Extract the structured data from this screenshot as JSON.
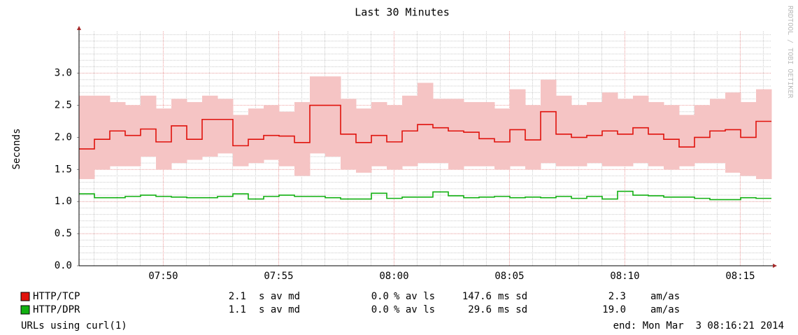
{
  "chart_data": {
    "type": "step",
    "title": "Last 30 Minutes",
    "y_label": "Seconds",
    "side_text": "RRDTOOL / TOBI OETIKER",
    "footer_left": "URLs using curl(1)",
    "footer_right": "end: Mon Mar  3 08:16:21 2014",
    "xlim": [
      "07:46:21",
      "08:16:21"
    ],
    "xticks": [
      "07:50",
      "07:55",
      "08:00",
      "08:05",
      "08:10",
      "08:15"
    ],
    "ylim": [
      0,
      3.65
    ],
    "yticks": [
      {
        "value": 0,
        "label": "0.0"
      },
      {
        "value": 0.5,
        "label": "0.5"
      },
      {
        "value": 1,
        "label": "1.0"
      },
      {
        "value": 1.5,
        "label": "1.5"
      },
      {
        "value": 2,
        "label": "2.0"
      },
      {
        "value": 2.5,
        "label": "2.5"
      },
      {
        "value": 3,
        "label": "3.0"
      }
    ],
    "grid": true,
    "x": [
      "07:46:21",
      "07:47:01",
      "07:47:41",
      "07:48:21",
      "07:49:01",
      "07:49:41",
      "07:50:21",
      "07:51:01",
      "07:51:41",
      "07:52:21",
      "07:53:01",
      "07:53:41",
      "07:54:21",
      "07:55:01",
      "07:55:41",
      "07:56:21",
      "07:57:01",
      "07:57:41",
      "07:58:21",
      "07:59:01",
      "07:59:41",
      "08:00:21",
      "08:01:01",
      "08:01:41",
      "08:02:21",
      "08:03:01",
      "08:03:41",
      "08:04:21",
      "08:05:01",
      "08:05:41",
      "08:06:21",
      "08:07:01",
      "08:07:41",
      "08:08:21",
      "08:09:01",
      "08:09:41",
      "08:10:21",
      "08:11:01",
      "08:11:41",
      "08:12:21",
      "08:13:01",
      "08:13:41",
      "08:14:21",
      "08:15:01",
      "08:15:41"
    ],
    "stat_units": [
      "s av md",
      "% av ls",
      "ms sd",
      "am/as"
    ],
    "series": [
      {
        "name": "HTTP/TCP",
        "color": "#e0120c",
        "band_color": "#f5c4c4",
        "stats": [
          "2.1",
          "0.0",
          "147.6",
          "2.3"
        ],
        "values": [
          1.82,
          1.97,
          2.1,
          2.03,
          2.13,
          1.93,
          2.18,
          1.97,
          2.28,
          2.28,
          1.87,
          1.97,
          2.03,
          2.02,
          1.92,
          2.5,
          2.5,
          2.05,
          1.92,
          2.03,
          1.93,
          2.1,
          2.2,
          2.15,
          2.1,
          2.08,
          1.98,
          1.93,
          2.12,
          1.96,
          2.4,
          2.05,
          2.0,
          2.03,
          2.1,
          2.05,
          2.15,
          2.05,
          1.97,
          1.85,
          2.0,
          2.1,
          2.12,
          2.0,
          2.25
        ],
        "upper": [
          2.65,
          2.65,
          2.55,
          2.5,
          2.65,
          2.45,
          2.6,
          2.55,
          2.65,
          2.6,
          2.35,
          2.45,
          2.5,
          2.4,
          2.55,
          2.95,
          2.95,
          2.6,
          2.45,
          2.55,
          2.5,
          2.65,
          2.85,
          2.6,
          2.6,
          2.55,
          2.55,
          2.45,
          2.75,
          2.5,
          2.9,
          2.65,
          2.5,
          2.55,
          2.7,
          2.6,
          2.65,
          2.55,
          2.5,
          2.35,
          2.5,
          2.6,
          2.7,
          2.55,
          2.75
        ],
        "lower": [
          1.35,
          1.5,
          1.55,
          1.55,
          1.7,
          1.5,
          1.6,
          1.65,
          1.7,
          1.75,
          1.55,
          1.6,
          1.65,
          1.55,
          1.4,
          1.75,
          1.7,
          1.5,
          1.45,
          1.55,
          1.5,
          1.55,
          1.6,
          1.6,
          1.5,
          1.55,
          1.55,
          1.5,
          1.55,
          1.5,
          1.6,
          1.55,
          1.55,
          1.6,
          1.55,
          1.55,
          1.6,
          1.55,
          1.5,
          1.55,
          1.6,
          1.6,
          1.45,
          1.4,
          1.35
        ]
      },
      {
        "name": "HTTP/DPR",
        "color": "#12b012",
        "stats": [
          "1.1",
          "0.0",
          "29.6",
          "19.0"
        ],
        "values": [
          1.12,
          1.06,
          1.06,
          1.08,
          1.1,
          1.08,
          1.07,
          1.06,
          1.06,
          1.08,
          1.12,
          1.04,
          1.08,
          1.1,
          1.08,
          1.08,
          1.06,
          1.04,
          1.04,
          1.13,
          1.05,
          1.07,
          1.07,
          1.15,
          1.09,
          1.06,
          1.07,
          1.08,
          1.06,
          1.07,
          1.06,
          1.08,
          1.05,
          1.08,
          1.04,
          1.16,
          1.1,
          1.09,
          1.07,
          1.07,
          1.05,
          1.03,
          1.03,
          1.06,
          1.05
        ]
      }
    ]
  }
}
